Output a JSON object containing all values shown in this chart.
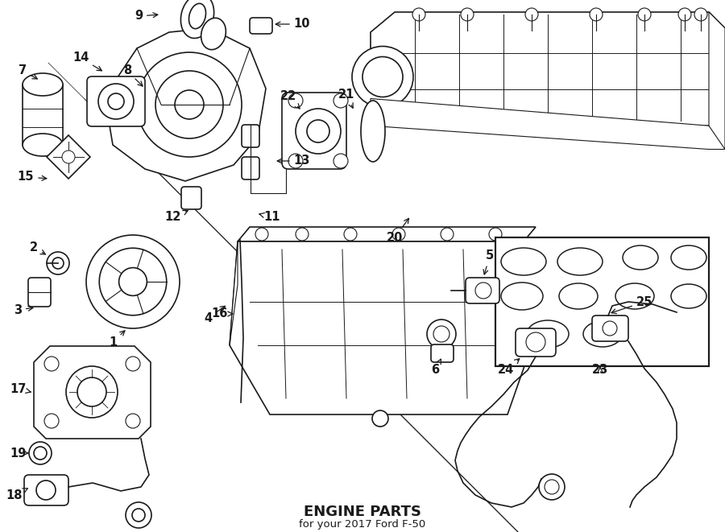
{
  "title": "ENGINE PARTS",
  "subtitle": "for your 2017 Ford F‑50",
  "bg_color": "#ffffff",
  "line_color": "#1a1a1a",
  "title_fontsize": 13,
  "subtitle_fontsize": 9.5,
  "label_fontsize": 10.5,
  "fig_width": 9.0,
  "fig_height": 6.61,
  "dpi": 100,
  "xmin": 0,
  "xmax": 900,
  "ymin": 0,
  "ymax": 661
}
